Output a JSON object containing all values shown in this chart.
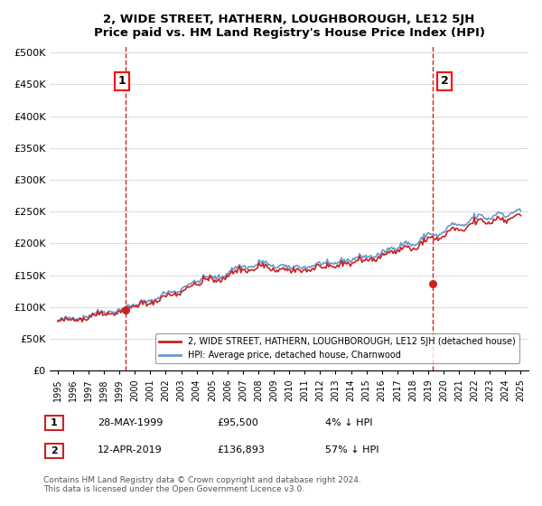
{
  "title": "2, WIDE STREET, HATHERN, LOUGHBOROUGH, LE12 5JH",
  "subtitle": "Price paid vs. HM Land Registry's House Price Index (HPI)",
  "ylabel_ticks": [
    "£0",
    "£50K",
    "£100K",
    "£150K",
    "£200K",
    "£250K",
    "£300K",
    "£350K",
    "£400K",
    "£450K",
    "£500K"
  ],
  "ytick_values": [
    0,
    50000,
    100000,
    150000,
    200000,
    250000,
    300000,
    350000,
    400000,
    450000,
    500000
  ],
  "ylim": [
    0,
    510000
  ],
  "hpi_color": "#6699cc",
  "price_color": "#cc2222",
  "vline_color": "#cc2222",
  "bg_color": "#ffffff",
  "grid_color": "#dddddd",
  "transaction1": {
    "date": "28-MAY-1999",
    "price": 95500,
    "label": "1",
    "year": 1999.4
  },
  "transaction2": {
    "date": "12-APR-2019",
    "price": 136893,
    "label": "2",
    "year": 2019.3
  },
  "legend_entry1": "2, WIDE STREET, HATHERN, LOUGHBOROUGH, LE12 5JH (detached house)",
  "legend_entry2": "HPI: Average price, detached house, Charnwood",
  "annot1_text": "1",
  "annot2_text": "2",
  "footnote": "Contains HM Land Registry data © Crown copyright and database right 2024.\nThis data is licensed under the Open Government Licence v3.0.",
  "table_row1": [
    "1",
    "28-MAY-1999",
    "£95,500",
    "4% ↓ HPI"
  ],
  "table_row2": [
    "2",
    "12-APR-2019",
    "£136,893",
    "57% ↓ HPI"
  ],
  "xlim_min": 1994.5,
  "xlim_max": 2025.5
}
